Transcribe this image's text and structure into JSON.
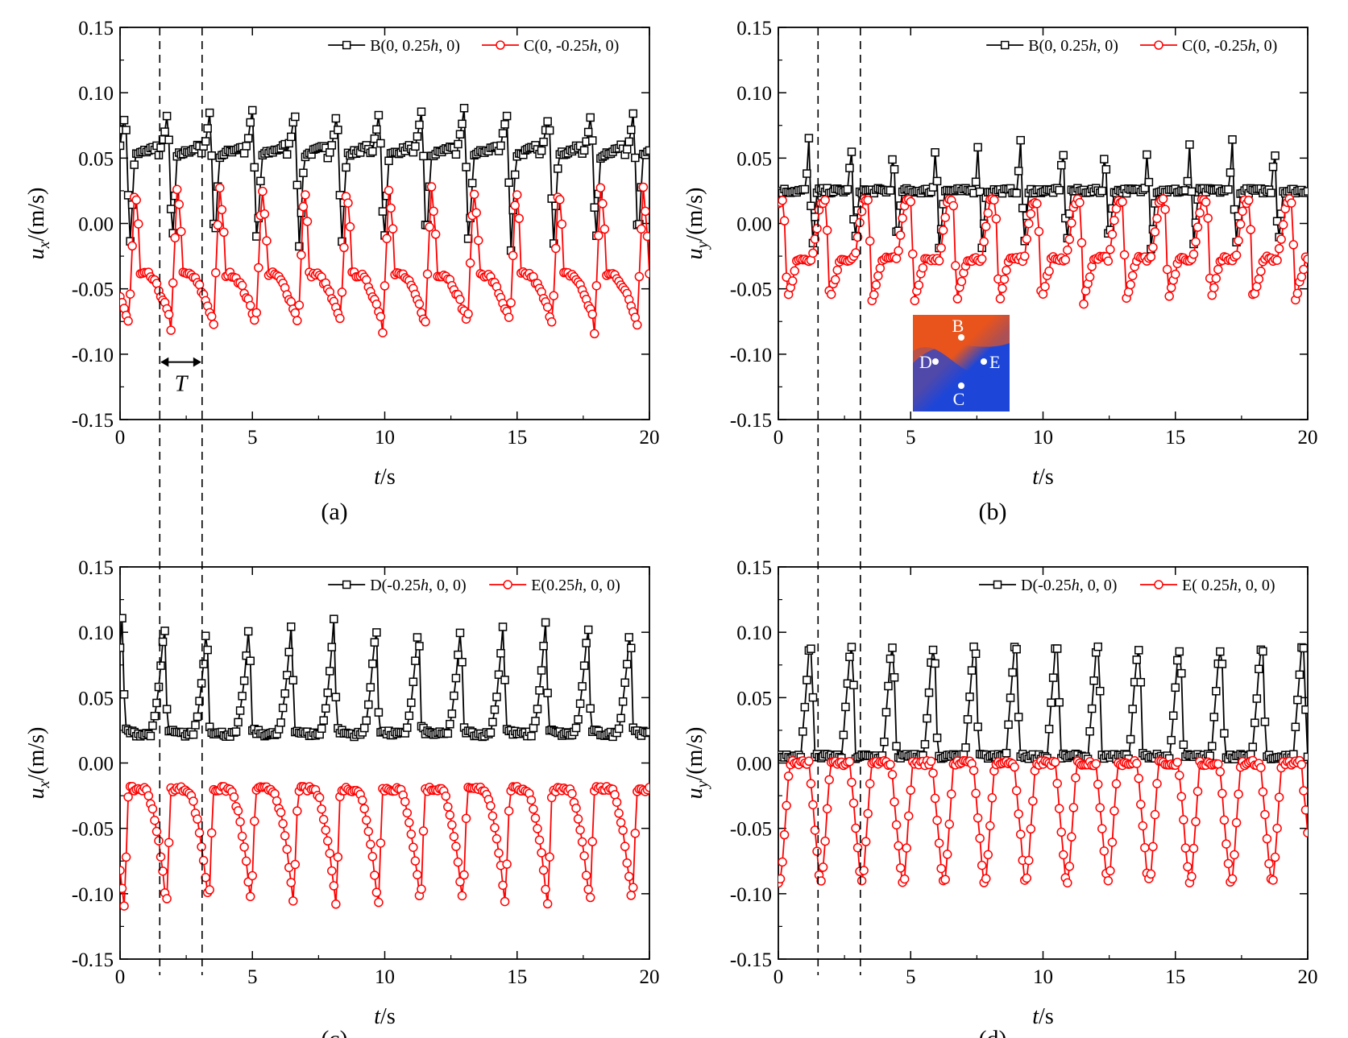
{
  "chart_data": [
    {
      "type": "line",
      "panel_label": "(a)",
      "xlabel": "t/s",
      "ylabel": "u_x/(m/s)",
      "xlim": [
        0,
        20
      ],
      "ylim": [
        -0.15,
        0.15
      ],
      "xticks": [
        "0",
        "5",
        "10",
        "15",
        "20"
      ],
      "yticks": [
        "0.15",
        "0.10",
        "0.05",
        "0.00",
        "-0.05",
        "-0.10",
        "-0.15"
      ],
      "period_marker": {
        "label": "T",
        "t_start": 1.5,
        "t_end": 3.1
      },
      "reference_lines_t": [
        1.5,
        3.1
      ],
      "series": [
        {
          "name": "B(0, 0.25h, 0)",
          "marker": "square",
          "color": "#000000",
          "mean": 0.052,
          "peak": 0.088,
          "trough": -0.02,
          "period": 1.6,
          "phase": 0.65,
          "shape": "sawtooth"
        },
        {
          "name": "C(0, -0.25h, 0)",
          "marker": "circle",
          "color": "#ff0000",
          "mean": -0.045,
          "peak": 0.03,
          "trough": -0.085,
          "period": 1.6,
          "phase": 0.35,
          "shape": "sawtooth-inv"
        }
      ]
    },
    {
      "type": "line",
      "panel_label": "(b)",
      "xlabel": "t/s",
      "ylabel": "u_y/(m/s)",
      "xlim": [
        0,
        20
      ],
      "ylim": [
        -0.15,
        0.15
      ],
      "xticks": [
        "0",
        "5",
        "10",
        "15",
        "20"
      ],
      "yticks": [
        "0.15",
        "0.10",
        "0.05",
        "0.00",
        "-0.05",
        "-0.10",
        "-0.15"
      ],
      "reference_lines_t": [
        1.5,
        3.1
      ],
      "inset": {
        "points": [
          "B",
          "D",
          "E",
          "C"
        ],
        "colors": {
          "positive": "#e8541c",
          "negative": "#1d46d8"
        }
      },
      "series": [
        {
          "name": "B(0, 0.25h, 0)",
          "marker": "square",
          "color": "#000000",
          "mean": 0.025,
          "peak": 0.065,
          "trough": -0.02,
          "period": 1.6,
          "phase": 0.9,
          "shape": "spike-up"
        },
        {
          "name": "C(0, -0.25h, 0)",
          "marker": "circle",
          "color": "#ff0000",
          "mean": -0.027,
          "peak": 0.017,
          "trough": -0.06,
          "period": 1.6,
          "phase": 0.55,
          "shape": "spike-down"
        }
      ]
    },
    {
      "type": "line",
      "panel_label": "(c)",
      "xlabel": "t/s",
      "ylabel": "u_x/(m/s)",
      "xlim": [
        0,
        20
      ],
      "ylim": [
        -0.15,
        0.15
      ],
      "xticks": [
        "0",
        "5",
        "10",
        "15",
        "20"
      ],
      "yticks": [
        "0.15",
        "0.10",
        "0.05",
        "0.00",
        "-0.05",
        "-0.10",
        "-0.15"
      ],
      "reference_lines_t": [
        1.5,
        3.1
      ],
      "series": [
        {
          "name": "D(-0.25h, 0, 0)",
          "marker": "square",
          "color": "#000000",
          "mean": 0.025,
          "peak": 0.11,
          "trough": 0.022,
          "period": 1.6,
          "phase": 0.5,
          "shape": "peak"
        },
        {
          "name": "E(0.25h, 0, 0)",
          "marker": "circle",
          "color": "#ff0000",
          "mean": -0.022,
          "peak": -0.02,
          "trough": -0.11,
          "period": 1.6,
          "phase": 0.55,
          "shape": "valley"
        }
      ]
    },
    {
      "type": "line",
      "panel_label": "(d)",
      "xlabel": "t/s",
      "ylabel": "u_y/(m/s)",
      "xlim": [
        0,
        20
      ],
      "ylim": [
        -0.15,
        0.15
      ],
      "xticks": [
        "0",
        "5",
        "10",
        "15",
        "20"
      ],
      "yticks": [
        "0.15",
        "0.10",
        "0.05",
        "0.00",
        "-0.05",
        "-0.10",
        "-0.15"
      ],
      "reference_lines_t": [
        1.5,
        3.1
      ],
      "series": [
        {
          "name": "D(-0.25h, 0, 0)",
          "marker": "square",
          "color": "#000000",
          "mean": 0.005,
          "peak": 0.087,
          "trough": 0.0,
          "period": 1.55,
          "phase": 0.75,
          "shape": "pulse-up"
        },
        {
          "name": "E( 0.25h, 0, 0)",
          "marker": "circle",
          "color": "#ff0000",
          "mean": -0.002,
          "peak": 0.0,
          "trough": -0.09,
          "period": 1.55,
          "phase": 0.45,
          "shape": "pulse-down"
        }
      ]
    }
  ]
}
